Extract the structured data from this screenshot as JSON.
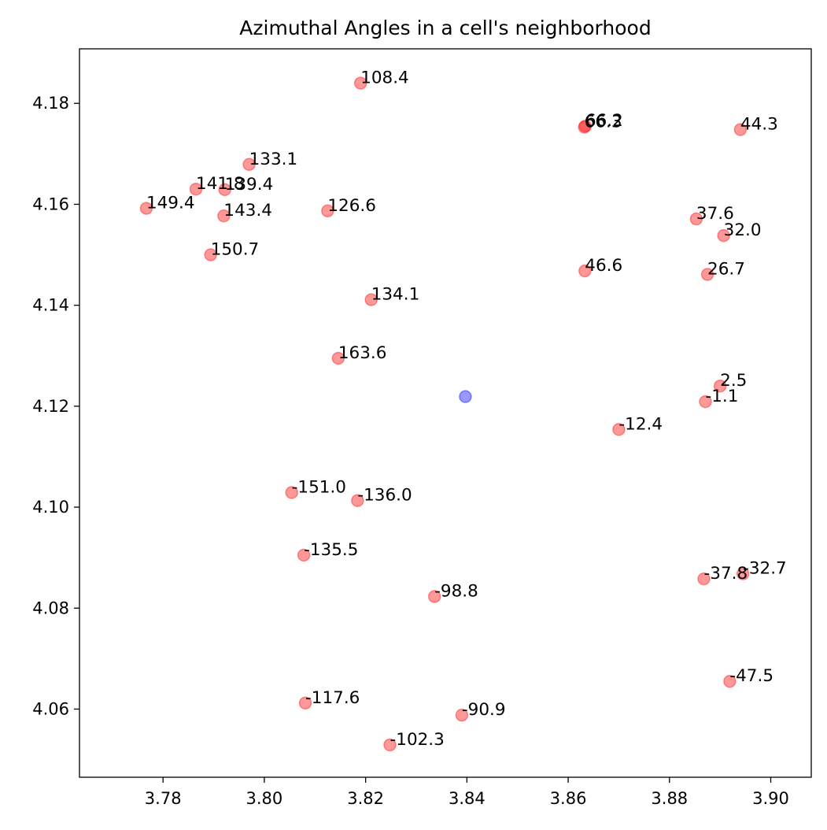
{
  "chart_data": {
    "type": "scatter",
    "title": "Azimuthal Angles in a cell's neighborhood",
    "xlabel": "",
    "ylabel": "",
    "xlim": [
      3.7635,
      3.908
    ],
    "ylim": [
      4.0465,
      4.1908
    ],
    "grid": false,
    "x_ticks": [
      3.78,
      3.8,
      3.82,
      3.84,
      3.86,
      3.88,
      3.9
    ],
    "x_tick_labels": [
      "3.78",
      "3.80",
      "3.82",
      "3.84",
      "3.86",
      "3.88",
      "3.90"
    ],
    "y_ticks": [
      4.06,
      4.08,
      4.1,
      4.12,
      4.14,
      4.16,
      4.18
    ],
    "y_tick_labels": [
      "4.06",
      "4.08",
      "4.10",
      "4.12",
      "4.14",
      "4.16",
      "4.18"
    ],
    "center_point": {
      "x": 3.8397,
      "y": 4.1219,
      "color": "#0000ff"
    },
    "neighbor_color": "#ff0000",
    "neighbors": [
      {
        "x": 3.819,
        "y": 4.184,
        "label": "108.4"
      },
      {
        "x": 3.8632,
        "y": 4.1753,
        "label": "66.3"
      },
      {
        "x": 3.8634,
        "y": 4.1755,
        "label": "66.2"
      },
      {
        "x": 3.894,
        "y": 4.1748,
        "label": "44.3"
      },
      {
        "x": 3.797,
        "y": 4.1679,
        "label": "133.1"
      },
      {
        "x": 3.7865,
        "y": 4.163,
        "label": "141.8"
      },
      {
        "x": 3.7922,
        "y": 4.1629,
        "label": "139.4"
      },
      {
        "x": 3.7767,
        "y": 4.1592,
        "label": "149.4"
      },
      {
        "x": 3.792,
        "y": 4.1577,
        "label": "143.4"
      },
      {
        "x": 3.8125,
        "y": 4.1587,
        "label": "126.6"
      },
      {
        "x": 3.8853,
        "y": 4.1571,
        "label": "37.6"
      },
      {
        "x": 3.8907,
        "y": 4.1538,
        "label": "32.0"
      },
      {
        "x": 3.7894,
        "y": 4.15,
        "label": "150.7"
      },
      {
        "x": 3.8633,
        "y": 4.1468,
        "label": "46.6"
      },
      {
        "x": 3.8875,
        "y": 4.1461,
        "label": "26.7"
      },
      {
        "x": 3.8211,
        "y": 4.1411,
        "label": "134.1"
      },
      {
        "x": 3.8146,
        "y": 4.1295,
        "label": "163.6"
      },
      {
        "x": 3.89,
        "y": 4.124,
        "label": "2.5"
      },
      {
        "x": 3.8871,
        "y": 4.1209,
        "label": "-1.1"
      },
      {
        "x": 3.87,
        "y": 4.1154,
        "label": "-12.4"
      },
      {
        "x": 3.8054,
        "y": 4.1029,
        "label": "-151.0"
      },
      {
        "x": 3.8184,
        "y": 4.1013,
        "label": "-136.0"
      },
      {
        "x": 3.8078,
        "y": 4.0905,
        "label": "-135.5"
      },
      {
        "x": 3.8868,
        "y": 4.0858,
        "label": "-37.8"
      },
      {
        "x": 3.8945,
        "y": 4.0868,
        "label": "-32.7"
      },
      {
        "x": 3.8336,
        "y": 4.0823,
        "label": "-98.8"
      },
      {
        "x": 3.8919,
        "y": 4.0655,
        "label": "-47.5"
      },
      {
        "x": 3.8081,
        "y": 4.0612,
        "label": "-117.6"
      },
      {
        "x": 3.839,
        "y": 4.0588,
        "label": "-90.9"
      },
      {
        "x": 3.8248,
        "y": 4.0529,
        "label": "-102.3"
      }
    ]
  }
}
